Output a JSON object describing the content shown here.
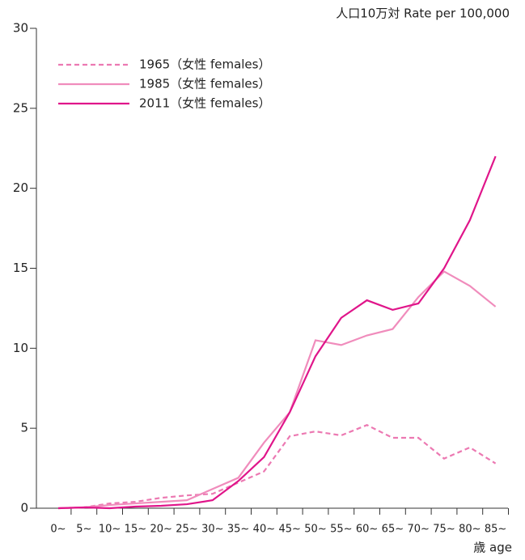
{
  "chart_data": {
    "type": "line",
    "y_unit_label": "人口10万対  Rate per 100,000",
    "x_axis_label": "歳 age",
    "categories": [
      "0~",
      "5~",
      "10~",
      "15~",
      "20~",
      "25~",
      "30~",
      "35~",
      "40~",
      "45~",
      "50~",
      "55~",
      "60~",
      "65~",
      "70~",
      "75~",
      "80~",
      "85~"
    ],
    "series": [
      {
        "name": "1965（女性 females）",
        "color": "#ec79b2",
        "dash": true,
        "values": [
          0,
          0.05,
          0.3,
          0.4,
          0.65,
          0.8,
          0.9,
          1.6,
          2.3,
          4.5,
          4.8,
          4.55,
          5.2,
          4.4,
          4.4,
          3.1,
          3.8,
          2.8
        ]
      },
      {
        "name": "1985（女性 females）",
        "color": "#f08cbc",
        "dash": false,
        "values": [
          0,
          0.05,
          0.2,
          0.3,
          0.4,
          0.5,
          1.2,
          1.9,
          4.1,
          6,
          10.5,
          10.2,
          10.8,
          11.2,
          13.2,
          14.8,
          13.9,
          12.6
        ]
      },
      {
        "name": "2011（女性 females）",
        "color": "#e0158a",
        "dash": false,
        "values": [
          0,
          0.05,
          0,
          0.1,
          0.15,
          0.25,
          0.5,
          1.7,
          3.2,
          6,
          9.5,
          11.9,
          13,
          12.4,
          12.8,
          15,
          18,
          22
        ]
      }
    ],
    "ylim": [
      0,
      30
    ],
    "yticks": [
      0,
      5,
      10,
      15,
      20,
      25,
      30
    ]
  }
}
